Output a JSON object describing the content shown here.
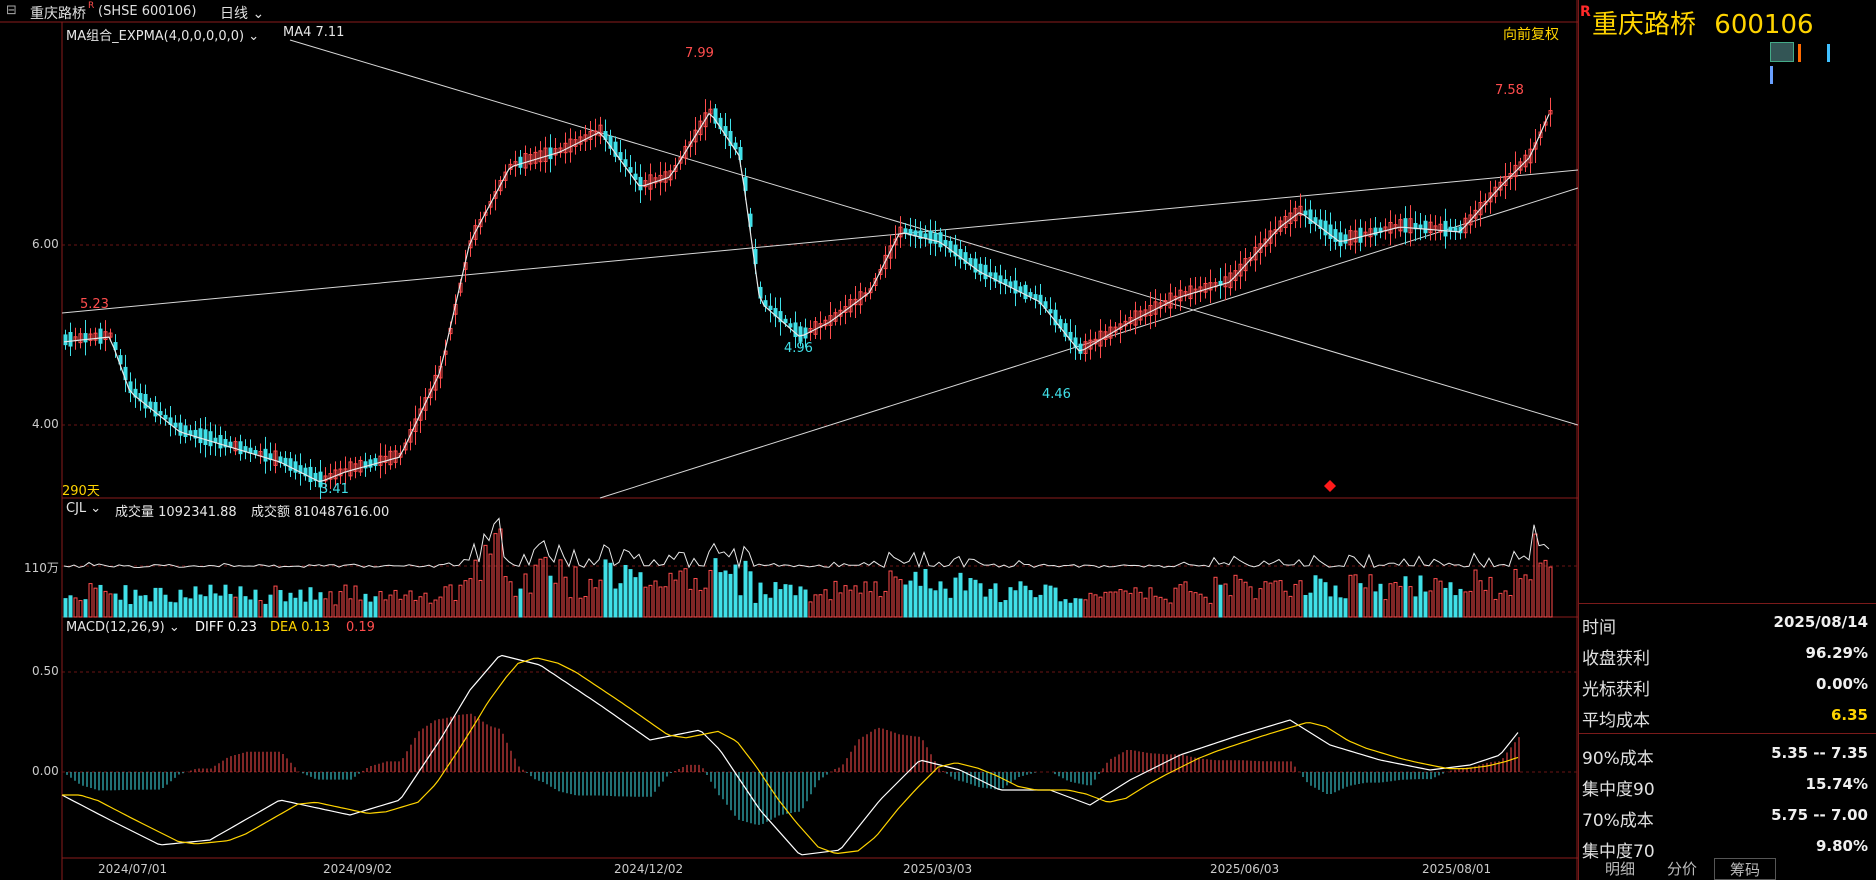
{
  "window": {
    "stock_name": "重庆路桥",
    "r_mark": "R",
    "market_code": "(SHSE 600106)",
    "period": "日线"
  },
  "overlay": {
    "indicator": "MA组合_EXPMA(4,0,0,0,0,0)",
    "ma4_label": "MA4 7.11",
    "adjust": "向前复权",
    "days": "290天"
  },
  "price_axis": [
    "6.00",
    "4.00"
  ],
  "price_annotations": {
    "high_1": "7.99",
    "high_2": "7.58",
    "left_high": "5.23",
    "low_1": "3.41",
    "low_2": "4.96",
    "low_3": "4.46"
  },
  "volume_panel": {
    "indicator": "CJL",
    "volume": "成交量 1092341.88",
    "amount": "成交额 810487616.00",
    "axis_label": "110万"
  },
  "macd_panel": {
    "indicator": "MACD(12,26,9)",
    "diff": "DIFF 0.23",
    "dea": "DEA 0.13",
    "macd": "0.19",
    "axis": [
      "0.50",
      "0.00"
    ]
  },
  "dates": [
    "2024/07/01",
    "2024/09/02",
    "2024/12/02",
    "2025/03/03",
    "2025/06/03",
    "2025/08/01"
  ],
  "side_panel": {
    "title_name": "重庆路桥",
    "title_code": "600106",
    "stats": [
      {
        "label": "时间",
        "value": "2025/08/14"
      },
      {
        "label": "收盘获利",
        "value": "96.29%"
      },
      {
        "label": "光标获利",
        "value": "0.00%"
      },
      {
        "label": "平均成本",
        "value": "6.35"
      },
      {
        "label": "90%成本",
        "value": "5.35 -- 7.35"
      },
      {
        "label": "集中度90",
        "value": "15.74%"
      },
      {
        "label": "70%成本",
        "value": "5.75 -- 7.00"
      },
      {
        "label": "集中度70",
        "value": "9.80%"
      }
    ],
    "tabs": [
      "明细",
      "分价",
      "筹码"
    ]
  },
  "colors": {
    "up": "#ff4d4d",
    "down": "#40e0e8",
    "yellow": "#ffd400",
    "grid": "#7a1a1a"
  }
}
